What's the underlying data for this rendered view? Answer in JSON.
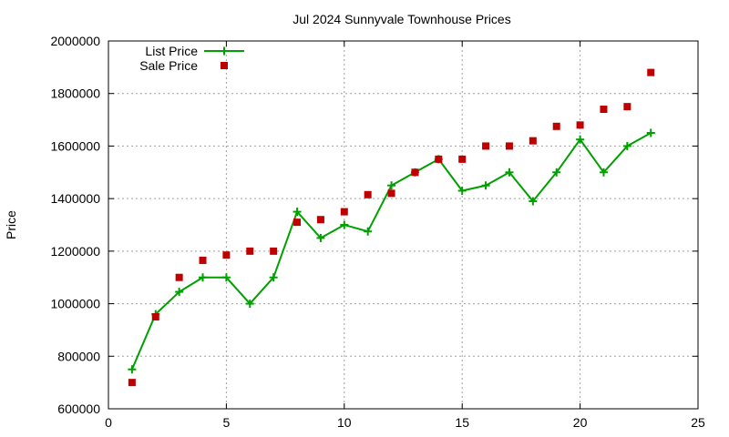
{
  "chart_data": {
    "type": "line",
    "title": "Jul 2024 Sunnyvale Townhouse Prices",
    "xlabel": "",
    "ylabel": "Price",
    "xlim": [
      0,
      25
    ],
    "ylim": [
      600000,
      2000000
    ],
    "xticks": [
      0,
      5,
      10,
      15,
      20,
      25
    ],
    "yticks": [
      600000,
      800000,
      1000000,
      1200000,
      1400000,
      1600000,
      1800000,
      2000000
    ],
    "grid": true,
    "legend_position": "top-left",
    "series": [
      {
        "name": "List Price",
        "style": "line-with-plus-markers",
        "color": "#00a000",
        "x": [
          1,
          2,
          3,
          4,
          5,
          6,
          7,
          8,
          9,
          10,
          11,
          12,
          13,
          14,
          15,
          16,
          17,
          18,
          19,
          20,
          21,
          22,
          23
        ],
        "y": [
          750000,
          960000,
          1045000,
          1100000,
          1100000,
          1000000,
          1100000,
          1350000,
          1250000,
          1300000,
          1275000,
          1450000,
          1500000,
          1550000,
          1430000,
          1450000,
          1500000,
          1390000,
          1500000,
          1625000,
          1500000,
          1600000,
          1650000
        ]
      },
      {
        "name": "Sale Price",
        "style": "square-markers",
        "color": "#c00000",
        "x": [
          1,
          2,
          3,
          4,
          5,
          6,
          7,
          8,
          9,
          10,
          11,
          12,
          13,
          14,
          15,
          16,
          17,
          18,
          19,
          20,
          21,
          22,
          23
        ],
        "y": [
          700000,
          950000,
          1100000,
          1165000,
          1185000,
          1200000,
          1200000,
          1310000,
          1320000,
          1350000,
          1415000,
          1420000,
          1500000,
          1550000,
          1550000,
          1600000,
          1600000,
          1620000,
          1675000,
          1680000,
          1740000,
          1750000,
          1880000
        ]
      }
    ]
  }
}
